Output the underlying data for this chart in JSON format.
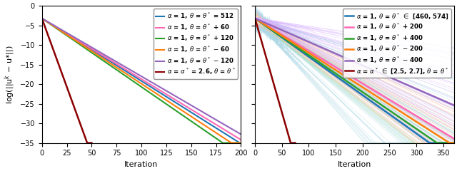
{
  "left": {
    "xlim": [
      0,
      200
    ],
    "ylim": [
      -35,
      0
    ],
    "xticks": [
      0,
      25,
      50,
      75,
      100,
      125,
      150,
      175,
      200
    ],
    "yticks": [
      0,
      -5,
      -10,
      -15,
      -20,
      -25,
      -30,
      -35
    ],
    "xlabel": "Iteration",
    "lines": [
      {
        "color": "#1f77b4",
        "rate": 0.16,
        "end": 200,
        "lw": 1.5
      },
      {
        "color": "#ff69b4",
        "rate": 0.155,
        "end": 200,
        "lw": 1.5
      },
      {
        "color": "#2ca02c",
        "rate": 0.175,
        "end": 200,
        "lw": 1.5
      },
      {
        "color": "#ff7f0e",
        "rate": 0.167,
        "end": 200,
        "lw": 1.5
      },
      {
        "color": "#9467bd",
        "rate": 0.148,
        "end": 200,
        "lw": 1.5
      },
      {
        "color": "#8b0000",
        "rate": 0.7,
        "end": 50,
        "lw": 1.8
      }
    ],
    "start_y": -3.2,
    "left_labels": [
      "$\\alpha$ = 1, $\\theta$ = $\\theta^*$ = 512",
      "$\\alpha$ = 1, $\\theta$ = $\\theta^*$ + 60",
      "$\\alpha$ = 1, $\\theta$ = $\\theta^*$ + 120",
      "$\\alpha$ = 1, $\\theta$ = $\\theta^*$ $-$ 60",
      "$\\alpha$ = 1, $\\theta$ = $\\theta^*$ $-$ 120",
      "$\\alpha$ = $\\alpha^*$ = 2.6, $\\theta$ = $\\theta^*$"
    ]
  },
  "right": {
    "xlim": [
      0,
      370
    ],
    "ylim": [
      -35,
      0
    ],
    "xticks": [
      0,
      50,
      100,
      150,
      200,
      250,
      300,
      350
    ],
    "yticks": [
      0,
      -5,
      -10,
      -15,
      -20,
      -25,
      -30,
      -35
    ],
    "xlabel": "Iteration",
    "lines": [
      {
        "color": "#1f77b4",
        "rate": 0.098,
        "end": 370,
        "lw": 1.8,
        "n_fan": 60,
        "fan_color": "#add8e6",
        "fan_rate_var": 0.06,
        "fan_noise": 1.5,
        "fan_noise_decay": 30
      },
      {
        "color": "#ff69b4",
        "rate": 0.083,
        "end": 370,
        "lw": 1.8,
        "n_fan": 30,
        "fan_color": "#ffb6c1",
        "fan_rate_var": 0.025,
        "fan_noise": 0.8,
        "fan_noise_decay": 40
      },
      {
        "color": "#2ca02c",
        "rate": 0.094,
        "end": 370,
        "lw": 1.8,
        "n_fan": 20,
        "fan_color": "#90ee90",
        "fan_rate_var": 0.02,
        "fan_noise": 0.5,
        "fan_noise_decay": 40
      },
      {
        "color": "#ff7f0e",
        "rate": 0.088,
        "end": 370,
        "lw": 1.8,
        "n_fan": 20,
        "fan_color": "#ffdab9",
        "fan_rate_var": 0.025,
        "fan_noise": 0.5,
        "fan_noise_decay": 40
      },
      {
        "color": "#9467bd",
        "rate": 0.06,
        "end": 370,
        "lw": 1.8,
        "n_fan": 50,
        "fan_color": "#d8b4fe",
        "fan_rate_var": 0.04,
        "fan_noise": 0.2,
        "fan_noise_decay": 80
      },
      {
        "color": "#8b0000",
        "rate": 0.48,
        "end": 75,
        "lw": 1.8,
        "n_fan": 0,
        "fan_color": null,
        "fan_rate_var": 0,
        "fan_noise": 0,
        "fan_noise_decay": 1
      }
    ],
    "start_y": -3.2,
    "right_labels": [
      "$\\alpha$ = 1, $\\theta$ = $\\theta^*$ $\\in$ [460, 574]",
      "$\\alpha$ = 1, $\\theta$ = $\\theta^*$ + 200",
      "$\\alpha$ = 1, $\\theta$ = $\\theta^*$ + 400",
      "$\\alpha$ = 1, $\\theta$ = $\\theta^*$ $-$ 200",
      "$\\alpha$ = 1, $\\theta$ = $\\theta^*$ $-$ 400",
      "$\\alpha$ = $\\alpha^*$ $\\in$ [2.5, 2.7], $\\theta$ = $\\theta^*$"
    ]
  },
  "legend_fontsize": 6.2,
  "tick_fontsize": 7,
  "label_fontsize": 8
}
